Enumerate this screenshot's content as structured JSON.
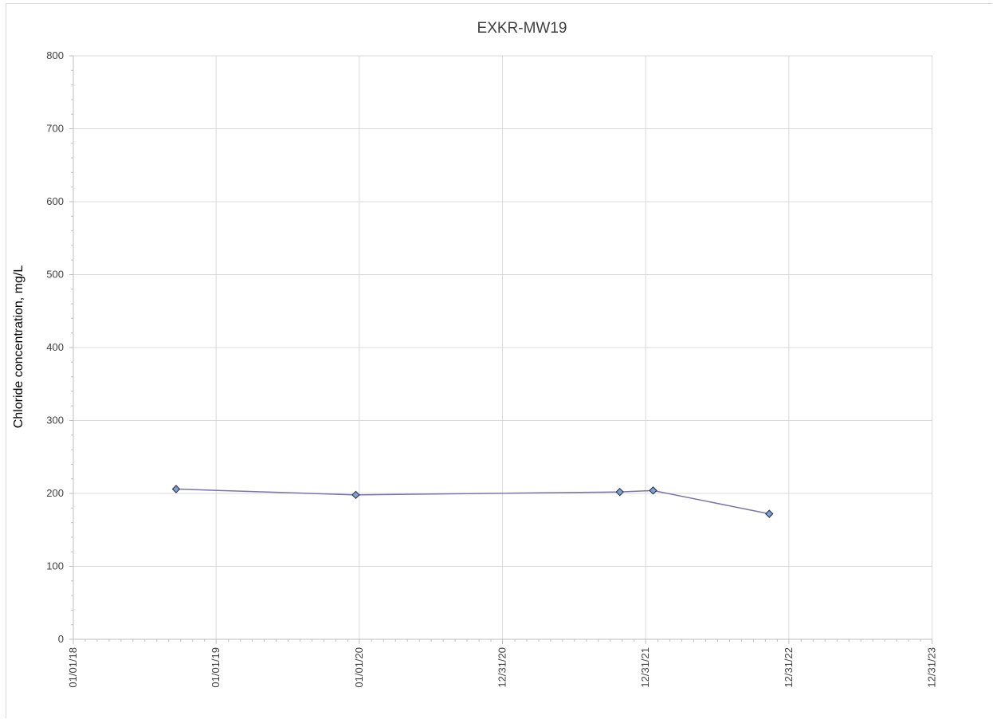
{
  "chart_data": {
    "type": "line",
    "title": "EXKR-MW19",
    "xlabel": "",
    "ylabel": "Chloride concentration, mg/L",
    "x_axis": {
      "type": "date",
      "range": [
        "2018-01-01",
        "2023-12-31"
      ],
      "tick_dates": [
        "2018-01-01",
        "2018-12-31",
        "2019-12-31",
        "2020-12-30",
        "2021-12-30",
        "2022-12-30",
        "2023-12-30"
      ],
      "tick_labels": [
        "01/01/18",
        "01/01/19",
        "01/01/20",
        "12/31/20",
        "12/31/21",
        "12/31/22",
        "12/31/23"
      ]
    },
    "y_axis": {
      "range": [
        0,
        800
      ],
      "ticks": [
        0,
        100,
        200,
        300,
        400,
        500,
        600,
        700,
        800
      ],
      "tick_labels": [
        "0",
        "100",
        "200",
        "300",
        "400",
        "500",
        "600",
        "700",
        "800"
      ]
    },
    "grid": true,
    "legend": "none",
    "series": [
      {
        "color": "#7a75a8",
        "marker": "diamond",
        "marker_fill": "#7f9fcf",
        "points": [
          {
            "x": "2018-09-20",
            "y": 206
          },
          {
            "x": "2019-12-22",
            "y": 198
          },
          {
            "x": "2021-10-25",
            "y": 202
          },
          {
            "x": "2022-01-18",
            "y": 204
          },
          {
            "x": "2022-11-10",
            "y": 172
          }
        ]
      }
    ]
  }
}
